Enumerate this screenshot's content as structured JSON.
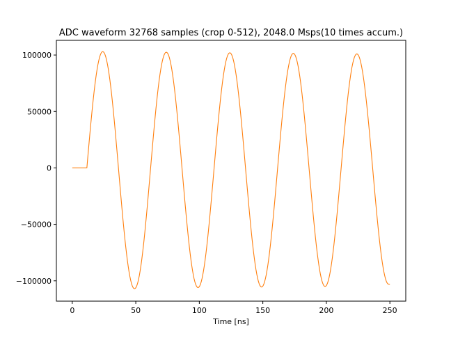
{
  "chart_data": {
    "type": "line",
    "title": "ADC waveform 32768 samples (crop 0-512), 2048.0 Msps(10 times accum.)",
    "xlabel": "Time [ns]",
    "ylabel": "",
    "xlim": [
      -12.5,
      262.5
    ],
    "ylim": [
      -118000,
      113000
    ],
    "x_ticks": [
      0,
      50,
      100,
      150,
      200,
      250
    ],
    "x_tick_labels": [
      "0",
      "50",
      "100",
      "150",
      "200",
      "250"
    ],
    "y_ticks": [
      100000,
      50000,
      0,
      -50000,
      -100000
    ],
    "y_tick_labels": [
      "100000",
      "50000",
      "0",
      "−50000",
      "−100000"
    ],
    "grid": false,
    "series": [
      {
        "color": "#ff7f0e",
        "x": [
          0,
          11.5,
          24,
          49,
          74,
          99,
          124,
          149,
          174,
          199,
          224,
          249,
          250
        ],
        "y": [
          0,
          0,
          103000,
          -107000,
          102500,
          -106000,
          102000,
          -105500,
          101500,
          -105000,
          101000,
          -103000,
          -103000
        ]
      }
    ]
  }
}
